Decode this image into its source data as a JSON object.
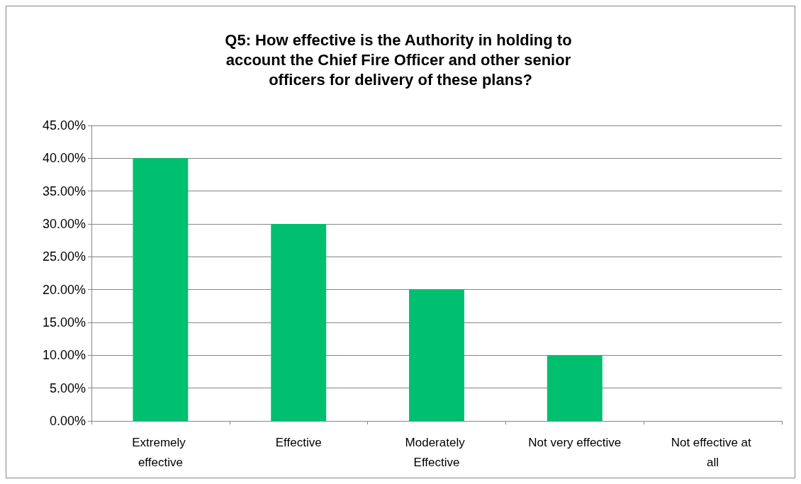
{
  "chart_data": {
    "type": "bar",
    "title": "Q5: How effective is the Authority in holding to account the Chief Fire Officer and other senior officers for delivery of these plans?",
    "categories": [
      "Extremely effective",
      "Effective",
      "Moderately Effective",
      "Not very effective",
      "Not effective at all"
    ],
    "values": [
      40,
      30,
      20,
      10,
      0
    ],
    "color": "#00c06f",
    "ylim": [
      0,
      45
    ],
    "yticks": [
      {
        "value": 0,
        "label": "0.00%"
      },
      {
        "value": 5,
        "label": "5.00%"
      },
      {
        "value": 10,
        "label": "10.00%"
      },
      {
        "value": 15,
        "label": "15.00%"
      },
      {
        "value": 20,
        "label": "20.00%"
      },
      {
        "value": 25,
        "label": "25.00%"
      },
      {
        "value": 30,
        "label": "30.00%"
      },
      {
        "value": 35,
        "label": "35.00%"
      },
      {
        "value": 40,
        "label": "40.00%"
      },
      {
        "value": 45,
        "label": "45.00%"
      }
    ],
    "grid": "y"
  }
}
